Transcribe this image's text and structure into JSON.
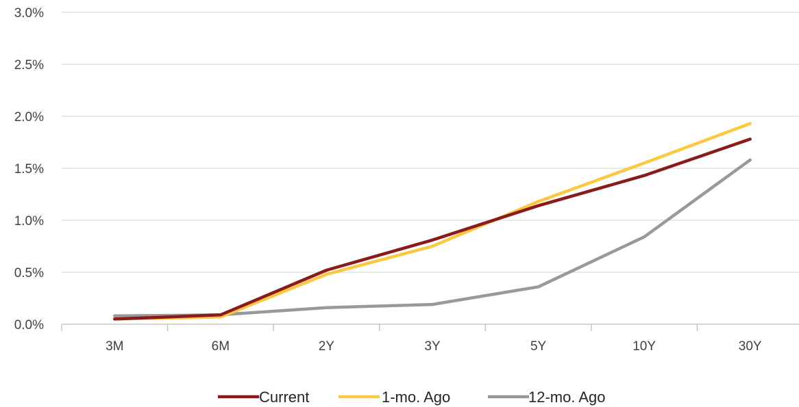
{
  "chart_data": {
    "type": "line",
    "title": "",
    "xlabel": "",
    "ylabel": "",
    "categories": [
      "3M",
      "6M",
      "2Y",
      "3Y",
      "5Y",
      "10Y",
      "30Y"
    ],
    "ylim": [
      0,
      3.0
    ],
    "yticks": [
      {
        "value": 0.0,
        "label": "0.0%"
      },
      {
        "value": 0.5,
        "label": "0.5%"
      },
      {
        "value": 1.0,
        "label": "1.0%"
      },
      {
        "value": 1.5,
        "label": "1.5%"
      },
      {
        "value": 2.0,
        "label": "2.0%"
      },
      {
        "value": 2.5,
        "label": "2.5%"
      },
      {
        "value": 3.0,
        "label": "3.0%"
      }
    ],
    "grid": true,
    "legend_position": "bottom",
    "series": [
      {
        "name": "Current",
        "color": "#8b1a1a",
        "values": [
          0.05,
          0.09,
          0.52,
          0.81,
          1.14,
          1.43,
          1.78
        ]
      },
      {
        "name": "1-mo. Ago",
        "color": "#fcc841",
        "values": [
          0.05,
          0.07,
          0.48,
          0.75,
          1.18,
          1.55,
          1.93
        ]
      },
      {
        "name": "12-mo. Ago",
        "color": "#999999",
        "values": [
          0.08,
          0.09,
          0.16,
          0.19,
          0.36,
          0.84,
          1.58
        ]
      }
    ]
  }
}
